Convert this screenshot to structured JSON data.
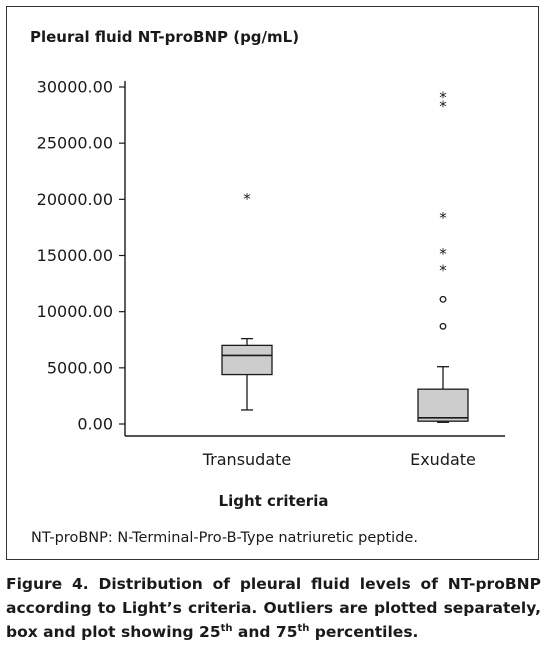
{
  "chart_data": {
    "type": "box",
    "ylabel": "Pleural fluid NT-proBNP (pg/mL)",
    "xlabel": "Light criteria",
    "ylim": [
      0,
      30000
    ],
    "yticks": [
      "0.00",
      "5000.00",
      "10000.00",
      "15000.00",
      "20000.00",
      "25000.00",
      "30000.00"
    ],
    "ytick_values": [
      0,
      5000,
      10000,
      15000,
      20000,
      25000,
      30000
    ],
    "categories": [
      "Transudate",
      "Exudate"
    ],
    "boxes": [
      {
        "category": "Transudate",
        "whisker_low": 1250,
        "q1": 4400,
        "median": 6100,
        "q3": 7000,
        "whisker_high": 7600,
        "outliers_circle": [],
        "outliers_star": [
          20400
        ]
      },
      {
        "category": "Exudate",
        "whisker_low": 150,
        "q1": 250,
        "median": 550,
        "q3": 3100,
        "whisker_high": 5100,
        "outliers_circle": [
          8700,
          11100
        ],
        "outliers_star": [
          14000,
          15500,
          18700,
          28600,
          29400
        ]
      }
    ],
    "box_fill": "#cdcdcd"
  },
  "footnote": "NT-proBNP: N-Terminal-Pro-B-Type natriuretic peptide.",
  "caption": {
    "prefix": "Figure 4. Distribution of pleural fluid levels of NT-proBNP according to Light’s criteria. Outliers are plotted separately, box and plot showing 25",
    "sup1": "th",
    "mid": " and 75",
    "sup2": "th",
    "suffix": " percentiles."
  }
}
